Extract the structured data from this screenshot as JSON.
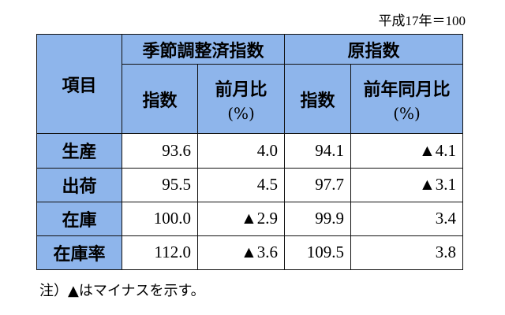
{
  "base_note": "平成17年＝100",
  "table": {
    "item_header": "項目",
    "group_seasonal": "季節調整済指数",
    "group_original": "原指数",
    "col_index_1": "指数",
    "col_mom_label": "前月比",
    "col_mom_unit": "(%)",
    "col_index_2": "指数",
    "col_yoy_label": "前年同月比",
    "col_yoy_unit": "(%)",
    "rows": [
      {
        "label": "生産",
        "sa_index": "93.6",
        "mom": "4.0",
        "orig_index": "94.1",
        "yoy": "▲4.1"
      },
      {
        "label": "出荷",
        "sa_index": "95.5",
        "mom": "4.5",
        "orig_index": "97.7",
        "yoy": "▲3.1"
      },
      {
        "label": "在庫",
        "sa_index": "100.0",
        "mom": "▲2.9",
        "orig_index": "99.9",
        "yoy": "3.4"
      },
      {
        "label": "在庫率",
        "sa_index": "112.0",
        "mom": "▲3.6",
        "orig_index": "109.5",
        "yoy": "3.8"
      }
    ]
  },
  "footnote": "注）▲はマイナスを示す。"
}
